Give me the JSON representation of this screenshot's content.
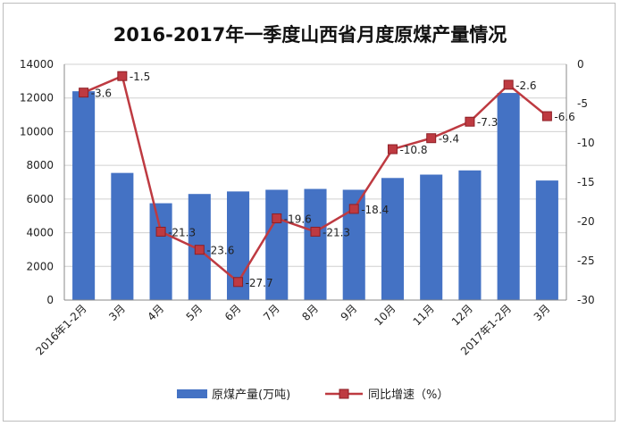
{
  "chart_data": {
    "type": "bar+line",
    "title": "2016-2017年一季度山西省月度原煤产量情况",
    "categories": [
      "2016年1-2月",
      "3月",
      "4月",
      "5月",
      "6月",
      "7月",
      "8月",
      "9月",
      "10月",
      "11月",
      "12月",
      "2017年1-2月",
      "3月"
    ],
    "series": [
      {
        "name": "原煤产量(万吨)",
        "type": "bar",
        "axis": "left",
        "color": "#4472C4",
        "values": [
          12400,
          7550,
          5750,
          6300,
          6450,
          6550,
          6600,
          6550,
          7250,
          7450,
          7700,
          12300,
          7100
        ]
      },
      {
        "name": "同比增速（%）",
        "type": "line",
        "axis": "right",
        "color": "#BE3A41",
        "values": [
          -3.6,
          -1.5,
          -21.3,
          -23.6,
          -27.7,
          -19.6,
          -21.3,
          -18.4,
          -10.8,
          -9.4,
          -7.3,
          -2.6,
          -6.6
        ],
        "labels": [
          "-3.6",
          "-1.5",
          "-21.3",
          "-23.6",
          "-27.7",
          "-19.6",
          "-21.3",
          "-18.4",
          "-10.8",
          "-9.4",
          "-7.3",
          "-2.6",
          "-6.6"
        ]
      }
    ],
    "y_left": {
      "min": 0,
      "max": 14000,
      "step": 2000,
      "ticks": [
        "0",
        "2000",
        "4000",
        "6000",
        "8000",
        "10000",
        "12000",
        "14000"
      ]
    },
    "y_right": {
      "min": -30,
      "max": 0,
      "step": 5,
      "ticks": [
        "-30",
        "-25",
        "-20",
        "-15",
        "-10",
        "-5",
        "0"
      ]
    },
    "grid": true,
    "legend": "bottom"
  }
}
